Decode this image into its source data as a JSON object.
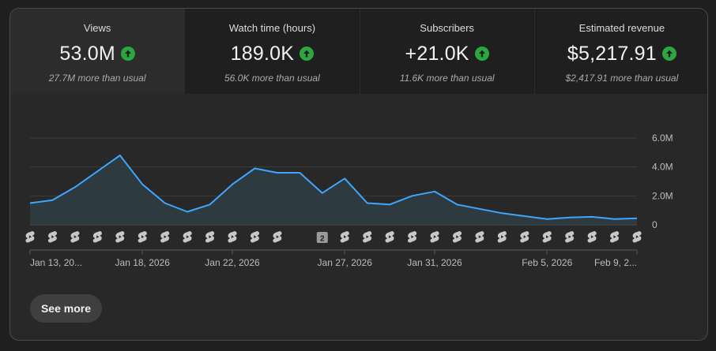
{
  "metrics": [
    {
      "label": "Views",
      "value": "53.0M",
      "note": "27.7M more than usual",
      "trend": "up"
    },
    {
      "label": "Watch time (hours)",
      "value": "189.0K",
      "note": "56.0K more than usual",
      "trend": "up"
    },
    {
      "label": "Subscribers",
      "value": "+21.0K",
      "note": "11.6K more than usual",
      "trend": "up"
    },
    {
      "label": "Estimated revenue",
      "value": "$5,217.91",
      "note": "$2,417.91 more than usual",
      "trend": "up"
    }
  ],
  "colors": {
    "line": "#3ea6ff",
    "up_badge": "#2ba640",
    "card_bg": "#282828"
  },
  "chart_data": {
    "type": "area",
    "series_name": "Views",
    "values_millions": [
      1.5,
      1.7,
      2.6,
      3.7,
      4.8,
      2.8,
      1.5,
      0.9,
      1.4,
      2.8,
      3.9,
      3.6,
      3.6,
      2.2,
      3.2,
      1.5,
      1.4,
      2.0,
      2.3,
      1.4,
      1.1,
      0.8,
      0.6,
      0.4,
      0.5,
      0.55,
      0.4,
      0.45
    ],
    "ylim": [
      0,
      6.0
    ],
    "y_ticks": [
      "6.0M",
      "4.0M",
      "2.0M",
      "0"
    ],
    "y_tick_values": [
      6,
      4,
      2,
      0
    ],
    "x_labels": [
      {
        "text": "Jan 13, 20...",
        "index": 0
      },
      {
        "text": "Jan 18, 2026",
        "index": 5
      },
      {
        "text": "Jan 22, 2026",
        "index": 9
      },
      {
        "text": "Jan 27, 2026",
        "index": 14
      },
      {
        "text": "Jan 31, 2026",
        "index": 18
      },
      {
        "text": "Feb 5, 2026",
        "index": 23
      },
      {
        "text": "Feb 9, 2...",
        "index": 27
      }
    ],
    "markers": {
      "icon": "shorts-icon",
      "count": 28,
      "grouped": [
        {
          "index": 13,
          "label": "2"
        }
      ],
      "empty": [
        12
      ]
    }
  },
  "actions": {
    "see_more": "See more"
  }
}
